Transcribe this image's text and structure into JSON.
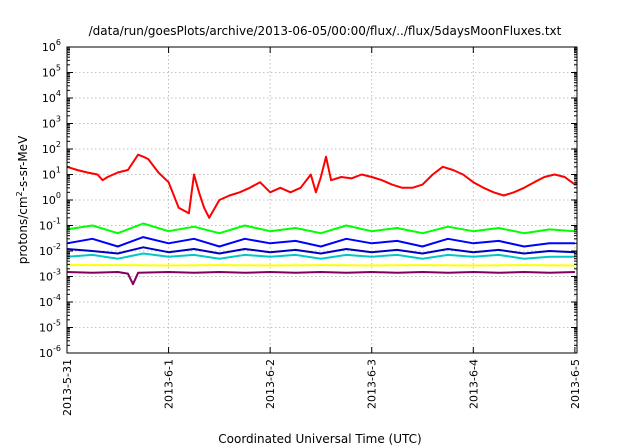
{
  "chart_data": {
    "type": "line",
    "title": "/data/run/goesPlots/archive/2013-06-05/00:00/flux/../flux/5daysMoonFluxes.txt",
    "xlabel": "Coordinated Universal Time (UTC)",
    "ylabel": {
      "prefix": "protons/cm",
      "sup": "2",
      "suffix": "-s-sr-MeV"
    },
    "yscale": "log",
    "ylim": [
      1e-06,
      1000000.0
    ],
    "ytick_exponents": [
      -6,
      -5,
      -4,
      -3,
      -2,
      -1,
      0,
      1,
      2,
      3,
      4,
      5,
      6
    ],
    "ytick_base": "10",
    "xlim": [
      "2013-05-31",
      "2013-06-05T00:30"
    ],
    "xtick_labels": [
      "2013-5-31",
      "2013-6-1",
      "2013-6-2",
      "2013-6-3",
      "2013-6-4",
      "2013-6-5"
    ],
    "grid": true,
    "legend": "none",
    "series": [
      {
        "color": "#ff0000",
        "x_days": [
          0.0,
          0.1,
          0.2,
          0.3,
          0.35,
          0.4,
          0.5,
          0.6,
          0.7,
          0.75,
          0.8,
          0.9,
          1.0,
          1.1,
          1.2,
          1.25,
          1.3,
          1.35,
          1.4,
          1.5,
          1.6,
          1.7,
          1.8,
          1.9,
          2.0,
          2.1,
          2.2,
          2.3,
          2.4,
          2.45,
          2.5,
          2.55,
          2.6,
          2.7,
          2.8,
          2.9,
          3.0,
          3.1,
          3.2,
          3.3,
          3.4,
          3.5,
          3.6,
          3.7,
          3.8,
          3.9,
          4.0,
          4.1,
          4.2,
          4.3,
          4.4,
          4.5,
          4.6,
          4.7,
          4.8,
          4.9,
          5.0,
          5.02
        ],
        "y": [
          20,
          15,
          12,
          10,
          6,
          8,
          12,
          15,
          60,
          50,
          40,
          12,
          5,
          0.5,
          0.3,
          10,
          2,
          0.5,
          0.2,
          1,
          1.5,
          2,
          3,
          5,
          2,
          3,
          2,
          3,
          10,
          2,
          8,
          50,
          6,
          8,
          7,
          10,
          8,
          6,
          4,
          3,
          3,
          4,
          10,
          20,
          15,
          10,
          5,
          3,
          2,
          1.5,
          2,
          3,
          5,
          8,
          10,
          8,
          4,
          5
        ]
      },
      {
        "color": "#00ff00",
        "x_days": [
          0.0,
          0.25,
          0.5,
          0.75,
          1.0,
          1.25,
          1.5,
          1.75,
          2.0,
          2.25,
          2.5,
          2.75,
          3.0,
          3.25,
          3.5,
          3.75,
          4.0,
          4.25,
          4.5,
          4.75,
          5.0
        ],
        "y": [
          0.07,
          0.1,
          0.05,
          0.12,
          0.06,
          0.09,
          0.05,
          0.1,
          0.06,
          0.08,
          0.05,
          0.1,
          0.06,
          0.08,
          0.05,
          0.09,
          0.06,
          0.08,
          0.05,
          0.07,
          0.06
        ]
      },
      {
        "color": "#0000ff",
        "x_days": [
          0.0,
          0.25,
          0.5,
          0.75,
          1.0,
          1.25,
          1.5,
          1.75,
          2.0,
          2.25,
          2.5,
          2.75,
          3.0,
          3.25,
          3.5,
          3.75,
          4.0,
          4.25,
          4.5,
          4.75,
          5.0
        ],
        "y": [
          0.02,
          0.03,
          0.015,
          0.035,
          0.02,
          0.03,
          0.015,
          0.03,
          0.02,
          0.025,
          0.015,
          0.03,
          0.02,
          0.025,
          0.015,
          0.03,
          0.02,
          0.025,
          0.015,
          0.02,
          0.02
        ]
      },
      {
        "color": "#0000c0",
        "x_days": [
          0.0,
          0.25,
          0.5,
          0.75,
          1.0,
          1.25,
          1.5,
          1.75,
          2.0,
          2.25,
          2.5,
          2.75,
          3.0,
          3.25,
          3.5,
          3.75,
          4.0,
          4.25,
          4.5,
          4.75,
          5.0
        ],
        "y": [
          0.012,
          0.01,
          0.008,
          0.014,
          0.009,
          0.012,
          0.008,
          0.012,
          0.009,
          0.011,
          0.008,
          0.012,
          0.009,
          0.011,
          0.008,
          0.012,
          0.009,
          0.011,
          0.008,
          0.01,
          0.009
        ]
      },
      {
        "color": "#00c8c8",
        "x_days": [
          0.0,
          0.25,
          0.5,
          0.75,
          1.0,
          1.25,
          1.5,
          1.75,
          2.0,
          2.25,
          2.5,
          2.75,
          3.0,
          3.25,
          3.5,
          3.75,
          4.0,
          4.25,
          4.5,
          4.75,
          5.0
        ],
        "y": [
          0.006,
          0.007,
          0.005,
          0.008,
          0.006,
          0.007,
          0.005,
          0.007,
          0.006,
          0.007,
          0.005,
          0.007,
          0.006,
          0.007,
          0.005,
          0.007,
          0.006,
          0.007,
          0.005,
          0.006,
          0.006
        ]
      },
      {
        "color": "#ffff00",
        "x_days": [
          0.0,
          0.5,
          1.0,
          1.5,
          2.0,
          2.5,
          3.0,
          3.5,
          4.0,
          4.5,
          5.0
        ],
        "y": [
          0.0028,
          0.0028,
          0.0027,
          0.0028,
          0.0027,
          0.0028,
          0.0027,
          0.0028,
          0.0027,
          0.0028,
          0.0027
        ]
      },
      {
        "color": "#800060",
        "x_days": [
          0.0,
          0.25,
          0.5,
          0.6,
          0.65,
          0.7,
          1.0,
          1.25,
          1.5,
          1.75,
          2.0,
          2.25,
          2.5,
          2.75,
          3.0,
          3.25,
          3.5,
          3.75,
          4.0,
          4.25,
          4.5,
          4.75,
          5.0
        ],
        "y": [
          0.0015,
          0.0014,
          0.0015,
          0.0013,
          0.0005,
          0.0014,
          0.0015,
          0.0014,
          0.0015,
          0.0014,
          0.0015,
          0.0014,
          0.0015,
          0.0014,
          0.0015,
          0.0014,
          0.0015,
          0.0014,
          0.0015,
          0.0014,
          0.0015,
          0.0014,
          0.0015
        ]
      }
    ]
  }
}
